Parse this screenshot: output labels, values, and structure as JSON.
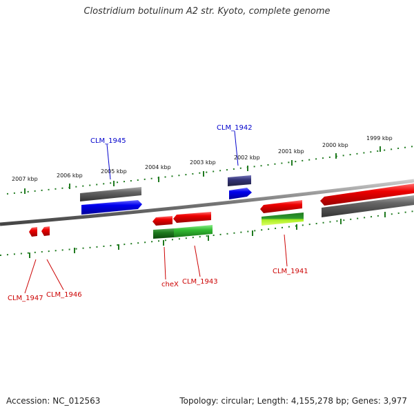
{
  "title": "Clostridium botulinum A2 str. Kyoto, complete genome",
  "footer": {
    "accession": "Accession: NC_012563",
    "summary": "Topology: circular; Length: 4,155,278 bp; Genes: 3,977"
  },
  "ticks": [
    "2007 kbp",
    "2006 kbp",
    "2005 kbp",
    "2004 kbp",
    "2003 kbp",
    "2002 kbp",
    "2001 kbp",
    "2000 kbp",
    "1999 kbp"
  ],
  "genes": [
    {
      "name": "CLM_1945",
      "color": "#0000cc"
    },
    {
      "name": "CLM_1942",
      "color": "#0000cc"
    },
    {
      "name": "CLM_1947",
      "color": "#cc0000"
    },
    {
      "name": "CLM_1946",
      "color": "#cc0000"
    },
    {
      "name": "cheX",
      "color": "#cc0000"
    },
    {
      "name": "CLM_1943",
      "color": "#cc0000"
    },
    {
      "name": "CLM_1941",
      "color": "#cc0000"
    }
  ],
  "colors": {
    "blue_feature": "#0000ee",
    "red_feature": "#ee0000",
    "gray_feature": "#666666",
    "green_feature": "#33bb33",
    "dark_green_feature": "#1f7a1f",
    "lime_feature": "#aaee22",
    "purple_feature": "#333377",
    "tick_green": "#1f7a1f",
    "backbone": "#888888"
  }
}
